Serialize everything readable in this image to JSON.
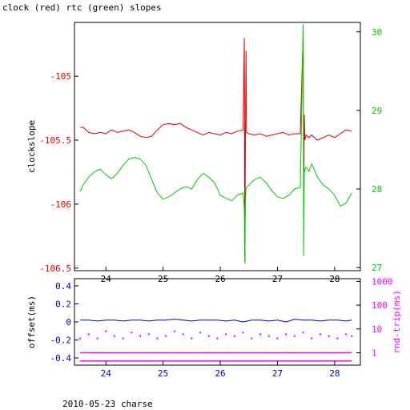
{
  "title": "clock (red) rtc (green) slopes",
  "caption": "2010-05-23 charse",
  "colors": {
    "clock": "#e00000",
    "rtc": "#00cc00",
    "offset": "#0000cc",
    "rtt": "#ff00ff",
    "axis": "#000000"
  },
  "chart_data": [
    {
      "type": "line",
      "title": "clock (red) rtc (green) slopes",
      "xlabel": "",
      "ylabel": "clockslope",
      "y2label": "",
      "xlim": [
        23.45,
        28.45
      ],
      "ylim": [
        -106.52,
        -104.58
      ],
      "y2lim": [
        26.96,
        30.12
      ],
      "xticks": [
        "24",
        "25",
        "26",
        "27",
        "28"
      ],
      "yticks": [
        "-105",
        "-105.5",
        "-106",
        "-106.5"
      ],
      "y2ticks": [
        "27",
        "28",
        "29",
        "30"
      ],
      "grid": false,
      "series": [
        {
          "name": "clock",
          "axis": "left",
          "x": [
            23.55,
            23.6,
            23.7,
            23.8,
            23.9,
            24.0,
            24.1,
            24.2,
            24.3,
            24.4,
            24.5,
            24.6,
            24.7,
            24.8,
            24.9,
            25.0,
            25.1,
            25.2,
            25.3,
            25.4,
            25.5,
            25.6,
            25.7,
            25.8,
            25.9,
            26.0,
            26.1,
            26.2,
            26.3,
            26.4,
            26.42,
            26.43,
            26.44,
            26.45,
            26.46,
            26.5,
            26.6,
            26.7,
            26.8,
            26.9,
            27.0,
            27.1,
            27.2,
            27.3,
            27.4,
            27.45,
            27.46,
            27.47,
            27.48,
            27.5,
            27.55,
            27.6,
            27.7,
            27.8,
            27.9,
            28.0,
            28.1,
            28.2,
            28.3
          ],
          "y": [
            -105.4,
            -105.4,
            -105.44,
            -105.45,
            -105.44,
            -105.45,
            -105.42,
            -105.44,
            -105.43,
            -105.42,
            -105.44,
            -105.47,
            -105.48,
            -105.47,
            -105.42,
            -105.38,
            -105.37,
            -105.38,
            -105.37,
            -105.4,
            -105.42,
            -105.44,
            -105.46,
            -105.44,
            -105.45,
            -105.46,
            -105.44,
            -105.45,
            -105.43,
            -105.42,
            -104.7,
            -106.45,
            -105.45,
            -104.8,
            -105.44,
            -105.45,
            -105.46,
            -105.45,
            -105.47,
            -105.46,
            -105.45,
            -105.44,
            -105.46,
            -105.45,
            -105.45,
            -104.65,
            -106.1,
            -105.3,
            -105.5,
            -105.46,
            -105.48,
            -105.46,
            -105.5,
            -105.48,
            -105.46,
            -105.48,
            -105.45,
            -105.42,
            -105.43
          ]
        },
        {
          "name": "rtc",
          "axis": "right",
          "x": [
            23.55,
            23.6,
            23.7,
            23.8,
            23.9,
            24.0,
            24.1,
            24.2,
            24.3,
            24.4,
            24.5,
            24.6,
            24.7,
            24.8,
            24.9,
            25.0,
            25.1,
            25.2,
            25.3,
            25.4,
            25.5,
            25.6,
            25.7,
            25.8,
            25.9,
            26.0,
            26.1,
            26.2,
            26.3,
            26.4,
            26.42,
            26.43,
            26.44,
            26.45,
            26.46,
            26.5,
            26.6,
            26.7,
            26.8,
            26.9,
            27.0,
            27.1,
            27.2,
            27.3,
            27.4,
            27.45,
            27.46,
            27.47,
            27.48,
            27.5,
            27.55,
            27.6,
            27.7,
            27.8,
            27.9,
            28.0,
            28.1,
            28.2,
            28.3
          ],
          "y": [
            27.97,
            28.05,
            28.15,
            28.22,
            28.25,
            28.18,
            28.13,
            28.2,
            28.3,
            28.38,
            28.4,
            28.38,
            28.3,
            28.12,
            27.95,
            27.87,
            27.9,
            27.95,
            28.0,
            28.03,
            28.0,
            28.12,
            28.2,
            28.15,
            28.08,
            27.92,
            27.88,
            27.85,
            27.92,
            27.95,
            27.75,
            27.05,
            27.85,
            28.0,
            28.02,
            28.05,
            28.12,
            28.15,
            28.08,
            27.98,
            27.9,
            27.88,
            27.92,
            28.0,
            28.02,
            30.1,
            27.15,
            28.2,
            28.25,
            28.28,
            28.22,
            28.32,
            28.15,
            28.05,
            28.0,
            27.92,
            27.78,
            27.82,
            27.95
          ]
        }
      ]
    },
    {
      "type": "scatter",
      "xlabel": "",
      "ylabel": "offset(ms)",
      "y2label": "rnd-trip(ms)",
      "xlim": [
        23.45,
        28.45
      ],
      "ylim": [
        -0.48,
        0.48
      ],
      "y2scale": "log",
      "y2lim": [
        0.3,
        1300
      ],
      "xticks": [
        "24",
        "25",
        "26",
        "27",
        "28"
      ],
      "yticks": [
        "0.4",
        "0.2",
        "0",
        "-0.2",
        "-0.4"
      ],
      "y2ticks": [
        "1",
        "10",
        "100",
        "1000"
      ],
      "grid": false,
      "series": [
        {
          "name": "offset",
          "axis": "left",
          "x": [
            23.55,
            23.7,
            23.85,
            24.0,
            24.15,
            24.3,
            24.45,
            24.6,
            24.75,
            24.9,
            25.05,
            25.2,
            25.35,
            25.5,
            25.65,
            25.8,
            25.95,
            26.1,
            26.25,
            26.4,
            26.55,
            26.7,
            26.85,
            27.0,
            27.15,
            27.3,
            27.45,
            27.6,
            27.75,
            27.9,
            28.05,
            28.2,
            28.3
          ],
          "y": [
            0.02,
            0.02,
            0.01,
            0.02,
            0.02,
            0.01,
            0.02,
            0.02,
            0.01,
            0.02,
            0.02,
            0.03,
            0.02,
            0.01,
            0.02,
            0.02,
            0.02,
            0.01,
            0.02,
            0.0,
            0.02,
            0.02,
            0.01,
            0.02,
            0.0,
            0.03,
            0.02,
            0.02,
            0.01,
            0.02,
            0.02,
            0.01,
            0.02
          ]
        },
        {
          "name": "rnd-trip",
          "axis": "right",
          "x": [
            23.55,
            23.7,
            23.85,
            24.0,
            24.15,
            24.3,
            24.45,
            24.6,
            24.75,
            24.9,
            25.05,
            25.2,
            25.35,
            25.5,
            25.65,
            25.8,
            25.95,
            26.1,
            26.25,
            26.4,
            26.55,
            26.7,
            26.85,
            27.0,
            27.15,
            27.3,
            27.45,
            27.6,
            27.75,
            27.9,
            28.05,
            28.2,
            28.3
          ],
          "y": [
            4,
            6,
            4,
            8,
            5,
            4,
            7,
            5,
            6,
            4,
            5,
            8,
            6,
            4,
            7,
            5,
            4,
            6,
            5,
            7,
            4,
            6,
            5,
            4,
            6,
            5,
            7,
            4,
            6,
            5,
            4,
            6,
            5
          ]
        }
      ],
      "bands": [
        {
          "name": "rnd-trip",
          "axis": "right",
          "y": 1.0
        },
        {
          "name": "rnd-trip",
          "axis": "right",
          "y": 0.45
        }
      ]
    }
  ]
}
